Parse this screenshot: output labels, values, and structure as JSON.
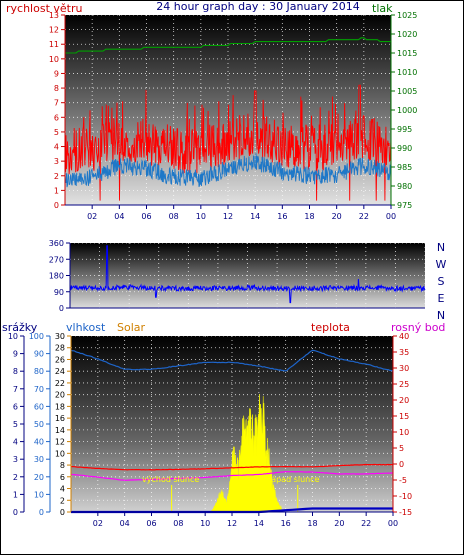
{
  "panels": [
    {
      "id": "wind_pressure",
      "title": "24 hour graph day : 30 January 2014",
      "left_axis_label": "rychlost větru",
      "right_axis_label": "tlak",
      "left_ticks": [
        "0",
        "1",
        "2",
        "3",
        "4",
        "5",
        "6",
        "7",
        "8",
        "9",
        "10",
        "11",
        "12",
        "13"
      ],
      "right_ticks": [
        "975",
        "980",
        "985",
        "990",
        "995",
        "1000",
        "1005",
        "1010",
        "1015",
        "1020",
        "1025"
      ],
      "x_ticks": [
        "02",
        "04",
        "06",
        "08",
        "10",
        "12",
        "14",
        "16",
        "18",
        "20",
        "22",
        "00"
      ]
    },
    {
      "id": "wind_direction",
      "left_ticks": [
        "0",
        "90",
        "180",
        "270",
        "360"
      ],
      "right_labels": [
        "N",
        "W",
        "S",
        "E",
        "N"
      ]
    },
    {
      "id": "climate",
      "headers": {
        "rain": "srážky",
        "humidity": "vlhkost",
        "solar": "Solar",
        "temperature": "teplota",
        "dewpoint": "rosný bod"
      },
      "rain_ticks": [
        "0",
        "1",
        "2",
        "3",
        "4",
        "5",
        "6",
        "7",
        "8",
        "9",
        "10"
      ],
      "humidity_ticks": [
        "0",
        "10",
        "20",
        "30",
        "40",
        "50",
        "60",
        "70",
        "80",
        "90",
        "100"
      ],
      "solar_ticks": [
        "0",
        "2",
        "4",
        "6",
        "8",
        "10",
        "12",
        "14",
        "16",
        "18",
        "20",
        "22",
        "24",
        "26",
        "28",
        "30"
      ],
      "temp_ticks": [
        "-15",
        "-10",
        "-5",
        "0",
        "5",
        "10",
        "15",
        "20",
        "25",
        "30",
        "35",
        "40"
      ],
      "annotations": {
        "sunrise": "východ slunce",
        "sunset": "západ slunce"
      },
      "x_ticks": [
        "02",
        "04",
        "06",
        "08",
        "10",
        "12",
        "14",
        "16",
        "18",
        "20",
        "22",
        "00"
      ]
    }
  ],
  "chart_data": [
    {
      "type": "line",
      "title": "24 hour graph day : 30 January 2014",
      "x": [
        "00",
        "02",
        "04",
        "06",
        "08",
        "10",
        "12",
        "14",
        "16",
        "18",
        "20",
        "22",
        "00"
      ],
      "series": [
        {
          "name": "rychlost větru",
          "color": "#ff0000",
          "values": [
            3.2,
            3.3,
            4.1,
            3.9,
            3.3,
            3.2,
            3.9,
            4.4,
            3.7,
            3.4,
            3.5,
            4.1,
            3.6
          ]
        },
        {
          "name": "tlak",
          "color": "#008000",
          "values": [
            1015,
            1015.5,
            1016,
            1016.3,
            1016.6,
            1016.7,
            1017.2,
            1017.8,
            1018,
            1018,
            1018.4,
            1018.8,
            1017.8
          ]
        }
      ],
      "gust_peaks": [
        [
          14,
          7.8
        ],
        [
          21.7,
          8.2
        ]
      ],
      "ylim_left": [
        0,
        13
      ],
      "ylim_right": [
        975,
        1025
      ]
    },
    {
      "type": "line",
      "x": [
        "00",
        "02",
        "04",
        "06",
        "08",
        "10",
        "12",
        "14",
        "16",
        "18",
        "20",
        "22",
        "00"
      ],
      "series": [
        {
          "name": "direction",
          "color": "#0000ff",
          "values": [
            112,
            110,
            115,
            111,
            108,
            110,
            112,
            110,
            109,
            110,
            112,
            108,
            110
          ]
        }
      ],
      "spikes": [
        [
          2.5,
          345
        ],
        [
          5.8,
          60
        ],
        [
          14.9,
          30
        ],
        [
          19.5,
          160
        ]
      ],
      "ylim": [
        0,
        360
      ]
    },
    {
      "type": "line",
      "x": [
        "00",
        "02",
        "04",
        "06",
        "08",
        "10",
        "12",
        "14",
        "16",
        "18",
        "20",
        "22",
        "00"
      ],
      "series": [
        {
          "name": "vlhkost",
          "color": "#1e64c8",
          "values": [
            92,
            87,
            81,
            81,
            83,
            85,
            85,
            83,
            80,
            92,
            87,
            84,
            80
          ]
        },
        {
          "name": "teplota",
          "color": "#ff0000",
          "values": [
            -0.8,
            -1.4,
            -1.8,
            -1.8,
            -1.7,
            -1.5,
            -1.2,
            -0.9,
            -0.8,
            -0.9,
            -0.5,
            -0.2,
            -0.2
          ]
        },
        {
          "name": "rosný bod",
          "color": "#ff00ff",
          "values": [
            -3.2,
            -4.1,
            -5.1,
            -4.8,
            -4.5,
            -4.2,
            -3.6,
            -3.3,
            -2.4,
            -2.5,
            -3.1,
            -3.1,
            -2.8
          ]
        },
        {
          "name": "Solar",
          "color": "#ffff00",
          "values": [
            0,
            0,
            0,
            0,
            0,
            3,
            15,
            21,
            0,
            0,
            0,
            0,
            0
          ]
        },
        {
          "name": "srážky",
          "color": "#0000c0",
          "values": [
            0,
            0,
            0,
            0,
            0,
            0,
            0,
            0,
            0.1,
            0.2,
            0.2,
            0.2,
            0.2
          ]
        }
      ],
      "sunrise_hour": 7.5,
      "sunset_hour": 16.9,
      "ylim_humidity": [
        0,
        100
      ],
      "ylim_temp": [
        -15,
        40
      ],
      "ylim_solar": [
        0,
        30
      ],
      "ylim_rain": [
        0,
        10
      ]
    }
  ]
}
